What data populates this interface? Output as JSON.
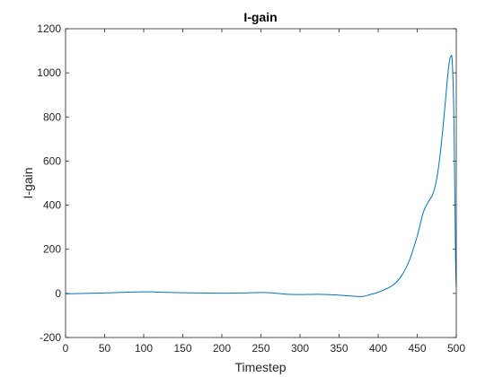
{
  "chart_data": {
    "type": "line",
    "title": "I-gain",
    "xlabel": "Timestep",
    "ylabel": "I-gain",
    "xlim": [
      0,
      500
    ],
    "ylim": [
      -200,
      1200
    ],
    "xticks": [
      0,
      50,
      100,
      150,
      200,
      250,
      300,
      350,
      400,
      450,
      500
    ],
    "yticks": [
      -200,
      0,
      200,
      400,
      600,
      800,
      1000,
      1200
    ],
    "grid": false,
    "box": true,
    "line_color": "#0072BD",
    "series": [
      {
        "x": [
          0,
          25,
          50,
          75,
          100,
          110,
          125,
          150,
          175,
          200,
          225,
          250,
          265,
          280,
          300,
          325,
          350,
          365,
          380,
          390,
          400,
          410,
          420,
          430,
          440,
          450,
          458,
          465,
          470,
          475,
          480,
          485,
          490,
          493,
          495,
          497,
          499,
          500
        ],
        "y": [
          -2,
          0,
          2,
          5,
          7,
          7,
          5,
          3,
          2,
          1,
          2,
          4,
          2,
          -3,
          -5,
          -4,
          -8,
          -12,
          -14,
          -5,
          5,
          20,
          40,
          80,
          150,
          260,
          370,
          420,
          450,
          520,
          650,
          830,
          1020,
          1075,
          1040,
          780,
          180,
          30
        ]
      }
    ]
  }
}
